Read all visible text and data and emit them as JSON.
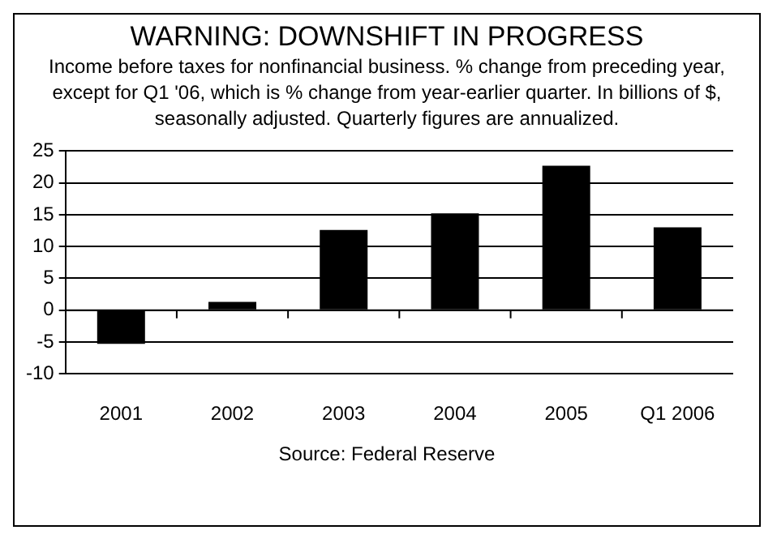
{
  "chart_data": {
    "type": "bar",
    "title": "WARNING: DOWNSHIFT IN PROGRESS",
    "subtitle": "Income before taxes for nonfinancial business. % change from preceding year, except for Q1 '06, which is % change from year-earlier quarter. In billions of $, seasonally adjusted. Quarterly figures are annualized.",
    "categories": [
      "2001",
      "2002",
      "2003",
      "2004",
      "2005",
      "Q1 2006"
    ],
    "values": [
      -5.3,
      1.3,
      12.6,
      15.2,
      22.7,
      13.0
    ],
    "color": "#000000",
    "ylim": [
      -10,
      25
    ],
    "yticks": [
      -10,
      -5,
      0,
      5,
      10,
      15,
      20,
      25
    ],
    "grid": "y",
    "legend": false,
    "annotations": [
      "Source: Federal Reserve"
    ]
  }
}
